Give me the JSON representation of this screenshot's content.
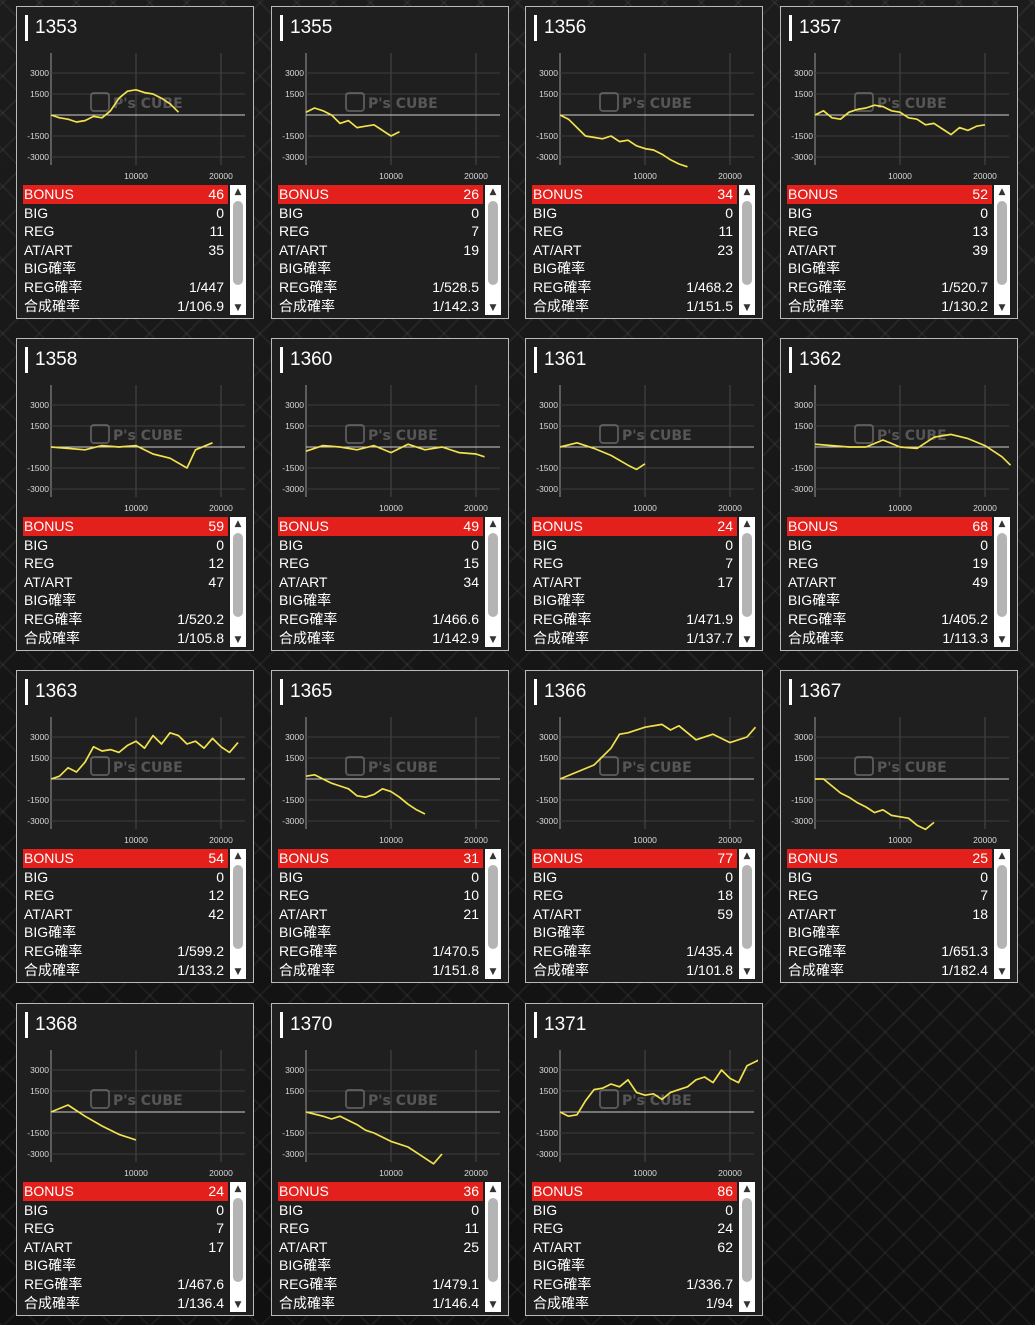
{
  "labels": {
    "bonus": "BONUS",
    "big": "BIG",
    "reg": "REG",
    "atart": "AT/ART",
    "big_rate": "BIG確率",
    "reg_rate": "REG確率",
    "total_rate": "合成確率"
  },
  "chart_common": {
    "yticks": [
      "3000",
      "1500",
      "-1500",
      "-3000"
    ],
    "xticks": [
      "10000",
      "20000"
    ],
    "watermark": "P's CUBE",
    "line_color": "#f2e24e"
  },
  "machines": [
    {
      "id": "1353",
      "bonus": "46",
      "big": "0",
      "reg": "11",
      "atart": "35",
      "big_rate": "",
      "reg_rate": "1/447",
      "total_rate": "1/106.9",
      "chart_data": {
        "type": "line",
        "x": [
          0,
          1000,
          2000,
          3000,
          4000,
          5000,
          6000,
          7000,
          8000,
          9000,
          10000,
          11000,
          12000,
          13000,
          14000,
          15000
        ],
        "y": [
          0,
          -200,
          -300,
          -500,
          -400,
          -100,
          -200,
          300,
          1200,
          1700,
          1800,
          1600,
          1500,
          1200,
          800,
          200
        ]
      }
    },
    {
      "id": "1355",
      "bonus": "26",
      "big": "0",
      "reg": "7",
      "atart": "19",
      "big_rate": "",
      "reg_rate": "1/528.5",
      "total_rate": "1/142.3",
      "chart_data": {
        "type": "line",
        "x": [
          0,
          1000,
          2000,
          3000,
          4000,
          5000,
          6000,
          7000,
          8000,
          9000,
          10000,
          11000
        ],
        "y": [
          200,
          500,
          300,
          0,
          -600,
          -400,
          -900,
          -800,
          -700,
          -1100,
          -1500,
          -1200
        ]
      }
    },
    {
      "id": "1356",
      "bonus": "34",
      "big": "0",
      "reg": "11",
      "atart": "23",
      "big_rate": "",
      "reg_rate": "1/468.2",
      "total_rate": "1/151.5",
      "chart_data": {
        "type": "line",
        "x": [
          0,
          1000,
          2000,
          3000,
          4000,
          5000,
          6000,
          7000,
          8000,
          9000,
          10000,
          11000,
          12000,
          13000,
          14000,
          15000
        ],
        "y": [
          0,
          -300,
          -900,
          -1500,
          -1600,
          -1700,
          -1500,
          -1900,
          -1800,
          -2200,
          -2400,
          -2500,
          -2800,
          -3200,
          -3500,
          -3700
        ]
      }
    },
    {
      "id": "1357",
      "bonus": "52",
      "big": "0",
      "reg": "13",
      "atart": "39",
      "big_rate": "",
      "reg_rate": "1/520.7",
      "total_rate": "1/130.2",
      "chart_data": {
        "type": "line",
        "x": [
          0,
          1000,
          2000,
          3000,
          4000,
          5000,
          6000,
          7000,
          8000,
          9000,
          10000,
          11000,
          12000,
          13000,
          14000,
          15000,
          16000,
          17000,
          18000,
          19000,
          20000
        ],
        "y": [
          0,
          300,
          -200,
          -300,
          200,
          400,
          500,
          700,
          600,
          300,
          200,
          -200,
          -300,
          -700,
          -600,
          -1000,
          -1400,
          -900,
          -1100,
          -800,
          -700
        ]
      }
    },
    {
      "id": "1358",
      "bonus": "59",
      "big": "0",
      "reg": "12",
      "atart": "47",
      "big_rate": "",
      "reg_rate": "1/520.2",
      "total_rate": "1/105.8",
      "chart_data": {
        "type": "line",
        "x": [
          0,
          2000,
          4000,
          6000,
          8000,
          10000,
          12000,
          14000,
          16000,
          17000,
          19000
        ],
        "y": [
          0,
          -100,
          -200,
          100,
          0,
          100,
          -500,
          -800,
          -1500,
          -200,
          300
        ]
      }
    },
    {
      "id": "1360",
      "bonus": "49",
      "big": "0",
      "reg": "15",
      "atart": "34",
      "big_rate": "",
      "reg_rate": "1/466.6",
      "total_rate": "1/142.9",
      "chart_data": {
        "type": "line",
        "x": [
          0,
          2000,
          4000,
          6000,
          8000,
          10000,
          12000,
          14000,
          16000,
          18000,
          20000,
          21000
        ],
        "y": [
          -300,
          100,
          0,
          -200,
          100,
          -400,
          200,
          -200,
          0,
          -400,
          -500,
          -700
        ]
      }
    },
    {
      "id": "1361",
      "bonus": "24",
      "big": "0",
      "reg": "7",
      "atart": "17",
      "big_rate": "",
      "reg_rate": "1/471.9",
      "total_rate": "1/137.7",
      "chart_data": {
        "type": "line",
        "x": [
          0,
          2000,
          4000,
          6000,
          8000,
          9000,
          10000
        ],
        "y": [
          0,
          300,
          -100,
          -600,
          -1300,
          -1600,
          -1200
        ]
      }
    },
    {
      "id": "1362",
      "bonus": "68",
      "big": "0",
      "reg": "19",
      "atart": "49",
      "big_rate": "",
      "reg_rate": "1/405.2",
      "total_rate": "1/113.3",
      "chart_data": {
        "type": "line",
        "x": [
          0,
          2000,
          4000,
          6000,
          8000,
          10000,
          12000,
          14000,
          16000,
          18000,
          20000,
          22000,
          23000
        ],
        "y": [
          200,
          100,
          0,
          0,
          500,
          0,
          -100,
          700,
          900,
          600,
          100,
          -700,
          -1300
        ]
      }
    },
    {
      "id": "1363",
      "bonus": "54",
      "big": "0",
      "reg": "12",
      "atart": "42",
      "big_rate": "",
      "reg_rate": "1/599.2",
      "total_rate": "1/133.2",
      "chart_data": {
        "type": "line",
        "x": [
          0,
          1000,
          2000,
          3000,
          4000,
          5000,
          6000,
          7000,
          8000,
          9000,
          10000,
          11000,
          12000,
          13000,
          14000,
          15000,
          16000,
          17000,
          18000,
          19000,
          20000,
          21000,
          22000
        ],
        "y": [
          0,
          200,
          800,
          500,
          1200,
          2300,
          2000,
          2100,
          1900,
          2400,
          2700,
          2200,
          3100,
          2500,
          3300,
          3100,
          2500,
          2700,
          2200,
          2900,
          2300,
          1900,
          2600
        ]
      }
    },
    {
      "id": "1365",
      "bonus": "31",
      "big": "0",
      "reg": "10",
      "atart": "21",
      "big_rate": "",
      "reg_rate": "1/470.5",
      "total_rate": "1/151.8",
      "chart_data": {
        "type": "line",
        "x": [
          0,
          1000,
          2000,
          3000,
          4000,
          5000,
          6000,
          7000,
          8000,
          9000,
          10000,
          11000,
          12000,
          13000,
          14000
        ],
        "y": [
          200,
          300,
          0,
          -300,
          -500,
          -700,
          -1200,
          -1300,
          -1100,
          -700,
          -900,
          -1300,
          -1800,
          -2200,
          -2500
        ]
      }
    },
    {
      "id": "1366",
      "bonus": "77",
      "big": "0",
      "reg": "18",
      "atart": "59",
      "big_rate": "",
      "reg_rate": "1/435.4",
      "total_rate": "1/101.8",
      "chart_data": {
        "type": "line",
        "x": [
          0,
          2000,
          4000,
          6000,
          7000,
          8000,
          10000,
          12000,
          13000,
          14000,
          16000,
          18000,
          20000,
          22000,
          23000
        ],
        "y": [
          0,
          500,
          1000,
          2200,
          3200,
          3300,
          3700,
          3900,
          3500,
          3800,
          2800,
          3200,
          2600,
          3000,
          3700
        ]
      }
    },
    {
      "id": "1367",
      "bonus": "25",
      "big": "0",
      "reg": "7",
      "atart": "18",
      "big_rate": "",
      "reg_rate": "1/651.3",
      "total_rate": "1/182.4",
      "chart_data": {
        "type": "line",
        "x": [
          0,
          1000,
          2000,
          3000,
          4000,
          5000,
          6000,
          7000,
          8000,
          9000,
          10000,
          11000,
          12000,
          13000,
          14000
        ],
        "y": [
          0,
          0,
          -500,
          -1000,
          -1300,
          -1700,
          -2000,
          -2400,
          -2200,
          -2600,
          -2700,
          -2800,
          -3300,
          -3600,
          -3100
        ]
      }
    },
    {
      "id": "1368",
      "bonus": "24",
      "big": "0",
      "reg": "7",
      "atart": "17",
      "big_rate": "",
      "reg_rate": "1/467.6",
      "total_rate": "1/136.4",
      "chart_data": {
        "type": "line",
        "x": [
          0,
          2000,
          4000,
          6000,
          8000,
          10000
        ],
        "y": [
          0,
          500,
          -300,
          -1000,
          -1600,
          -2000
        ]
      }
    },
    {
      "id": "1370",
      "bonus": "36",
      "big": "0",
      "reg": "11",
      "atart": "25",
      "big_rate": "",
      "reg_rate": "1/479.1",
      "total_rate": "1/146.4",
      "chart_data": {
        "type": "line",
        "x": [
          0,
          2000,
          3000,
          4000,
          6000,
          7000,
          8000,
          10000,
          12000,
          13000,
          14000,
          15000,
          16000
        ],
        "y": [
          0,
          -300,
          -500,
          -300,
          -900,
          -1300,
          -1500,
          -2100,
          -2500,
          -2900,
          -3300,
          -3700,
          -3000
        ]
      }
    },
    {
      "id": "1371",
      "bonus": "86",
      "big": "0",
      "reg": "24",
      "atart": "62",
      "big_rate": "",
      "reg_rate": "1/336.7",
      "total_rate": "1/94",
      "chart_data": {
        "type": "line",
        "x": [
          0,
          1000,
          2000,
          3000,
          4000,
          5000,
          6000,
          7000,
          8000,
          9000,
          10000,
          11000,
          12000,
          13000,
          14000,
          15000,
          16000,
          17000,
          18000,
          19000,
          20000,
          21000,
          22000,
          23000,
          24000
        ],
        "y": [
          0,
          -300,
          -200,
          800,
          1600,
          1700,
          2000,
          1800,
          2300,
          1400,
          1200,
          1300,
          900,
          1400,
          1600,
          1800,
          2300,
          2500,
          2100,
          3000,
          2400,
          2100,
          3300,
          3600,
          3900
        ]
      }
    }
  ]
}
